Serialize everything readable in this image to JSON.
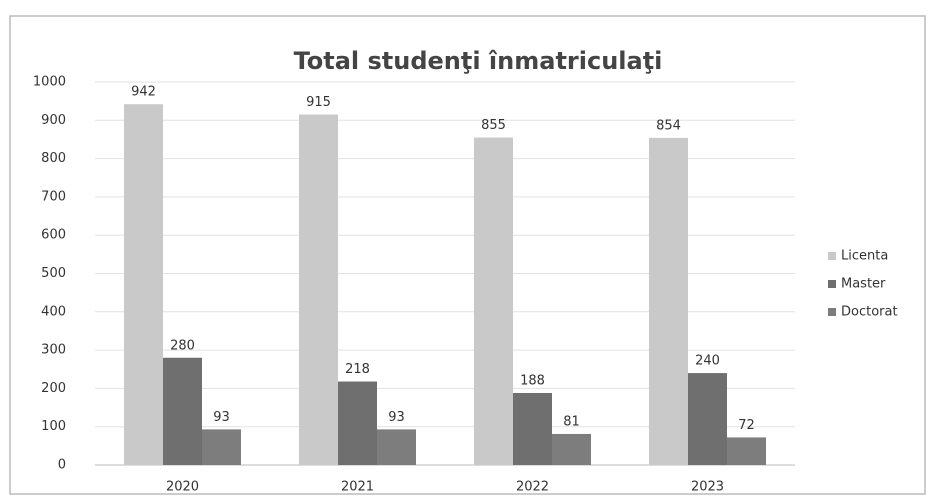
{
  "chart_data": {
    "type": "bar",
    "title": "Total studenţi înmatriculaţi",
    "categories": [
      "2020",
      "2021",
      "2022",
      "2023"
    ],
    "series": [
      {
        "name": "Licenta",
        "color": "#c9c9c9",
        "values": [
          942,
          915,
          855,
          854
        ]
      },
      {
        "name": "Master",
        "color": "#6f6f6f",
        "values": [
          280,
          218,
          188,
          240
        ]
      },
      {
        "name": "Doctorat",
        "color": "#7d7d7d",
        "values": [
          93,
          93,
          81,
          72
        ]
      }
    ],
    "ylim": [
      0,
      1000
    ],
    "yticks": [
      0,
      100,
      200,
      300,
      400,
      500,
      600,
      700,
      800,
      900,
      1000
    ],
    "grid": true,
    "legend": "right"
  }
}
